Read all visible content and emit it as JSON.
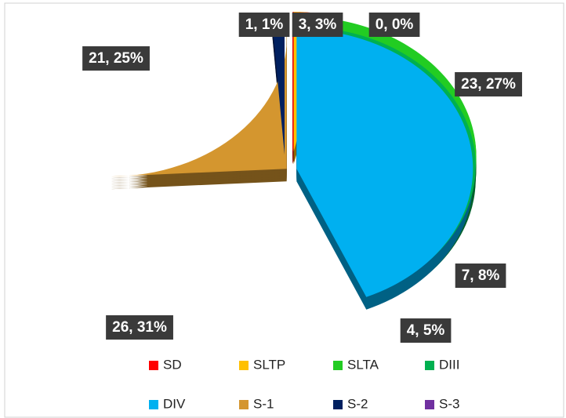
{
  "chart_data": {
    "type": "pie",
    "categories": [
      "SD",
      "SLTP",
      "SLTA",
      "DIII",
      "DIV",
      "S-1",
      "S-2",
      "S-3"
    ],
    "values": [
      3,
      0,
      23,
      7,
      4,
      26,
      21,
      1
    ],
    "value_labels": [
      "3, 3%",
      "0, 0%",
      "23, 27%",
      "7, 8%",
      "4, 5%",
      "26, 31%",
      "21, 25%",
      "1, 1%"
    ],
    "colors": [
      "#ff0000",
      "#ffc000",
      "#22cc22",
      "#00b050",
      "#00b0f0",
      "#d4962f",
      "#002060",
      "#7030a0"
    ],
    "legend": "bottom"
  }
}
